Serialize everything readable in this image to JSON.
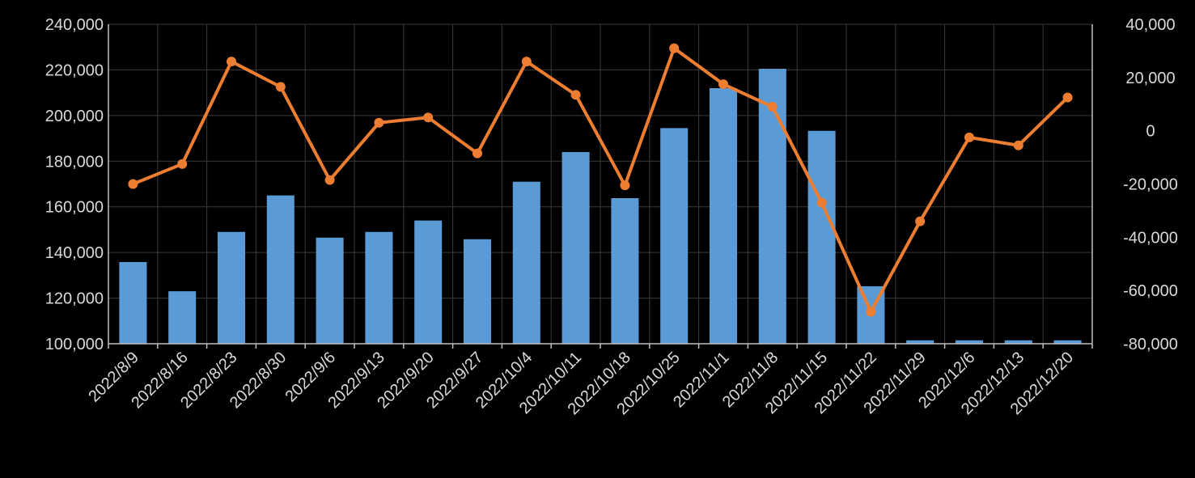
{
  "chart_data": {
    "type": "bar",
    "categories": [
      "2022/8/9",
      "2022/8/16",
      "2022/8/23",
      "2022/8/30",
      "2022/9/6",
      "2022/9/13",
      "2022/9/20",
      "2022/9/27",
      "2022/10/4",
      "2022/10/11",
      "2022/10/18",
      "2022/10/25",
      "2022/11/1",
      "2022/11/8",
      "2022/11/15",
      "2022/11/22",
      "2022/11/29",
      "2022/12/6",
      "2022/12/13",
      "2022/12/20"
    ],
    "series": [
      {
        "type": "bar",
        "axis": "left",
        "color": "#5b9bd5",
        "values": [
          135800,
          123000,
          149000,
          165000,
          146500,
          149000,
          154000,
          145800,
          171000,
          184000,
          163800,
          194500,
          212000,
          220500,
          193300,
          125200,
          101500,
          101500,
          101500,
          101500
        ]
      },
      {
        "type": "line",
        "axis": "right",
        "color": "#ed7d31",
        "marker": "circle",
        "values": [
          -20000,
          -12500,
          26000,
          16500,
          -18500,
          3000,
          5000,
          -8500,
          26000,
          13500,
          -20500,
          31000,
          17500,
          9000,
          -27000,
          -68000,
          -34000,
          -2500,
          -5500,
          12500
        ]
      }
    ],
    "y_left": {
      "min": 100000,
      "max": 240000,
      "step": 20000,
      "ticks": [
        "100,000",
        "120,000",
        "140,000",
        "160,000",
        "180,000",
        "200,000",
        "220,000",
        "240,000"
      ]
    },
    "y_right": {
      "min": -80000,
      "max": 40000,
      "step": 20000,
      "ticks": [
        "-80,000",
        "-60,000",
        "-40,000",
        "-20,000",
        "0",
        "20,000",
        "40,000"
      ]
    },
    "grid": true,
    "legend": "none",
    "title": "",
    "xlabel": "",
    "ylabel": "",
    "colors": {
      "background": "#000000",
      "grid": "#3a3a3a",
      "axis": "#bfbfbf",
      "text": "#d9d9d9"
    }
  }
}
